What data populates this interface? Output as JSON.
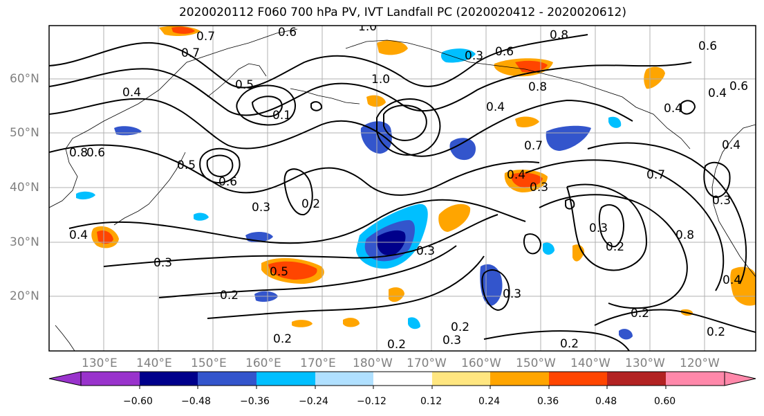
{
  "title": "2020020112 F060 700 hPa PV, IVT Landfall PC (2020020412 - 2020020612)",
  "map": {
    "lat_labels": [
      "60°N",
      "50°N",
      "40°N",
      "30°N",
      "20°N"
    ],
    "lon_labels": [
      "130°E",
      "140°E",
      "150°E",
      "160°E",
      "170°E",
      "180°W",
      "170°W",
      "160°W",
      "150°W",
      "140°W",
      "130°W",
      "120°W"
    ],
    "contour_labels": [
      "0.7",
      "0.6",
      "1.0",
      "0.8",
      "0.6",
      "0.7",
      "0.3",
      "0.4",
      "0.5",
      "1.0",
      "0.8",
      "0.4",
      "0.4",
      "0.1",
      "0.4",
      "0.7",
      "0.8",
      "0.6",
      "0.6",
      "0.5",
      "0.4",
      "0.3",
      "0.2",
      "0.3",
      "0.4",
      "0.3",
      "0.2",
      "0.8",
      "0.3",
      "0.5",
      "0.3",
      "0.2",
      "0.3",
      "0.2",
      "0.2",
      "0.3",
      "0.2",
      "0.2",
      "0.2",
      "0.4",
      "0.2",
      "0.7",
      "0.6",
      "0.4",
      "0.6",
      "0.3"
    ]
  },
  "colorbar": {
    "tick_labels": [
      "−0.60",
      "−0.48",
      "−0.36",
      "−0.24",
      "−0.12",
      "0.12",
      "0.24",
      "0.36",
      "0.48",
      "0.60"
    ],
    "colors": [
      "#9933cc",
      "#00008b",
      "#3355cc",
      "#00bfff",
      "#b0e0ff",
      "#ffffff",
      "#ffe680",
      "#ffa500",
      "#ff4500",
      "#b22222",
      "#ff88aa"
    ]
  }
}
